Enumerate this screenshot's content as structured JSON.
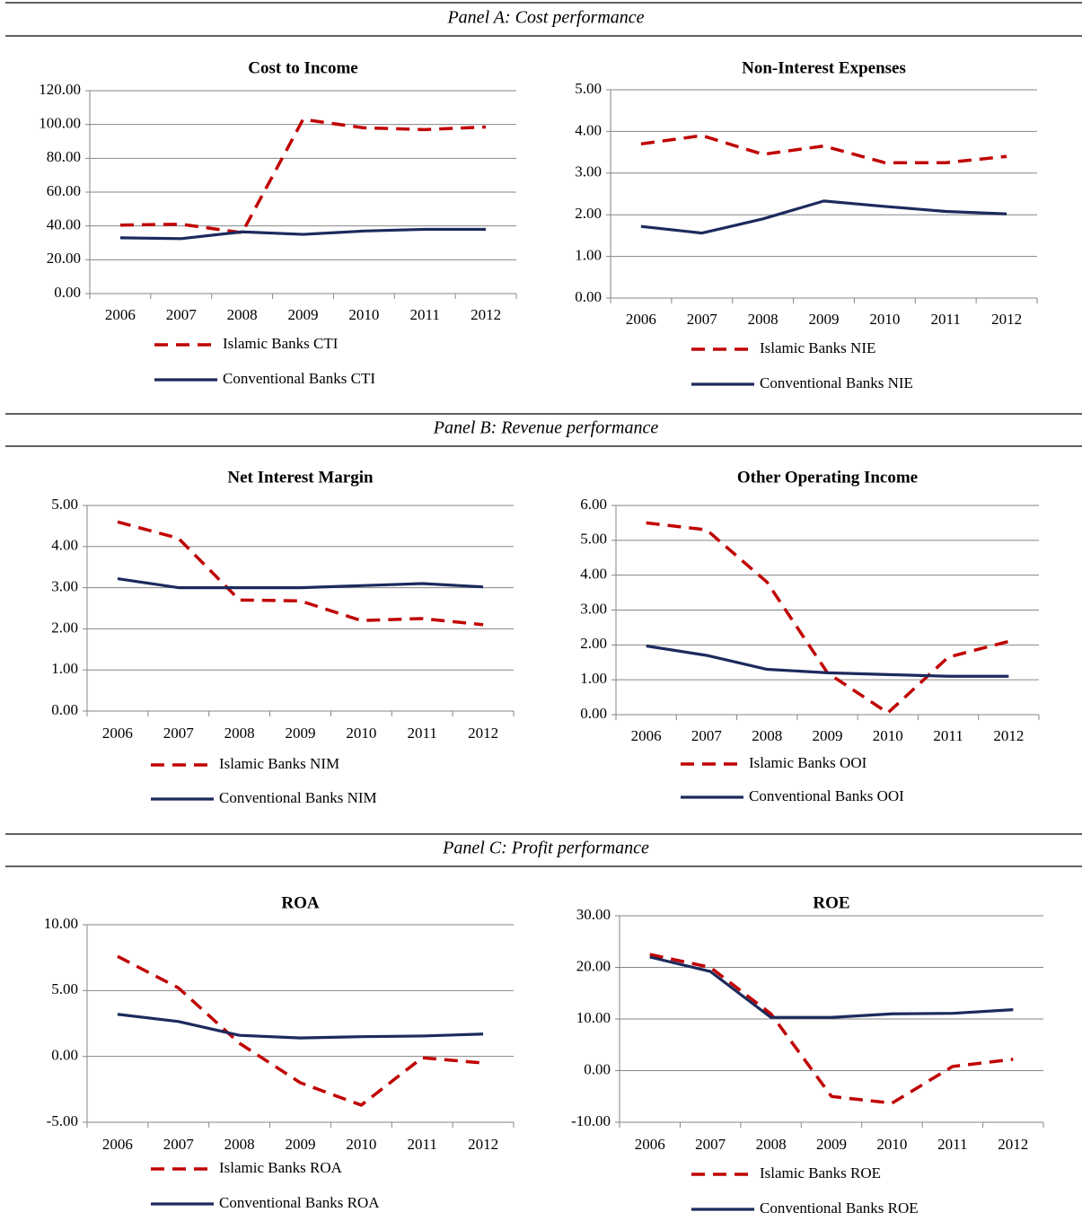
{
  "panels": [
    {
      "title": "Panel A: Cost performance"
    },
    {
      "title": "Panel B: Revenue performance"
    },
    {
      "title": "Panel C: Profit performance"
    }
  ],
  "chart_data": [
    {
      "type": "line",
      "title": "Cost to Income",
      "categories": [
        "2006",
        "2007",
        "2008",
        "2009",
        "2010",
        "2011",
        "2012"
      ],
      "series": [
        {
          "name": "Islamic Banks CTI",
          "color": "#c00000",
          "dashed": true,
          "values": [
            40.5,
            41,
            36,
            103,
            98,
            97,
            98.5
          ]
        },
        {
          "name": "Conventional Banks CTI",
          "color": "#1c2a5c",
          "dashed": false,
          "values": [
            33,
            32.5,
            36.5,
            35,
            37,
            38,
            38
          ]
        }
      ],
      "ylim": [
        0,
        120
      ],
      "yticks": [
        {
          "value": 0,
          "label": "0.00"
        },
        {
          "value": 20,
          "label": "20.00"
        },
        {
          "value": 40,
          "label": "40.00"
        },
        {
          "value": 60,
          "label": "60.00"
        },
        {
          "value": 80,
          "label": "80.00"
        },
        {
          "value": 100,
          "label": "100.00"
        },
        {
          "value": 120,
          "label": "120.00"
        }
      ],
      "grid": true
    },
    {
      "type": "line",
      "title": "Non-Interest Expenses",
      "categories": [
        "2006",
        "2007",
        "2008",
        "2009",
        "2010",
        "2011",
        "2012"
      ],
      "series": [
        {
          "name": "Islamic Banks NIE",
          "color": "#c00000",
          "dashed": true,
          "values": [
            3.7,
            3.9,
            3.45,
            3.65,
            3.25,
            3.25,
            3.4
          ]
        },
        {
          "name": "Conventional Banks NIE",
          "color": "#1c2a5c",
          "dashed": false,
          "values": [
            1.72,
            1.56,
            1.9,
            2.33,
            2.2,
            2.08,
            2.02
          ]
        }
      ],
      "ylim": [
        0,
        5
      ],
      "yticks": [
        {
          "value": 0,
          "label": "0.00"
        },
        {
          "value": 1,
          "label": "1.00"
        },
        {
          "value": 2,
          "label": "2.00"
        },
        {
          "value": 3,
          "label": "3.00"
        },
        {
          "value": 4,
          "label": "4.00"
        },
        {
          "value": 5,
          "label": "5.00"
        }
      ],
      "grid": true
    },
    {
      "type": "line",
      "title": "Net Interest Margin",
      "categories": [
        "2006",
        "2007",
        "2008",
        "2009",
        "2010",
        "2011",
        "2012"
      ],
      "series": [
        {
          "name": "Islamic Banks NIM",
          "color": "#c00000",
          "dashed": true,
          "values": [
            4.6,
            4.2,
            2.7,
            2.68,
            2.2,
            2.25,
            2.1
          ]
        },
        {
          "name": "Conventional Banks NIM",
          "color": "#1c2a5c",
          "dashed": false,
          "values": [
            3.22,
            3.0,
            3.0,
            3.0,
            3.05,
            3.1,
            3.02
          ]
        }
      ],
      "ylim": [
        0,
        5
      ],
      "yticks": [
        {
          "value": 0,
          "label": "0.00"
        },
        {
          "value": 1,
          "label": "1.00"
        },
        {
          "value": 2,
          "label": "2.00"
        },
        {
          "value": 3,
          "label": "3.00"
        },
        {
          "value": 4,
          "label": "4.00"
        },
        {
          "value": 5,
          "label": "5.00"
        }
      ],
      "grid": true
    },
    {
      "type": "line",
      "title": "Other Operating Income",
      "categories": [
        "2006",
        "2007",
        "2008",
        "2009",
        "2010",
        "2011",
        "2012"
      ],
      "series": [
        {
          "name": "Islamic Banks OOI",
          "color": "#c00000",
          "dashed": true,
          "values": [
            5.5,
            5.3,
            3.8,
            1.2,
            0.05,
            1.65,
            2.1
          ]
        },
        {
          "name": "Conventional Banks OOI",
          "color": "#1c2a5c",
          "dashed": false,
          "values": [
            1.97,
            1.7,
            1.3,
            1.2,
            1.15,
            1.1,
            1.1
          ]
        }
      ],
      "ylim": [
        0,
        6
      ],
      "yticks": [
        {
          "value": 0,
          "label": "0.00"
        },
        {
          "value": 1,
          "label": "1.00"
        },
        {
          "value": 2,
          "label": "2.00"
        },
        {
          "value": 3,
          "label": "3.00"
        },
        {
          "value": 4,
          "label": "4.00"
        },
        {
          "value": 5,
          "label": "5.00"
        },
        {
          "value": 6,
          "label": "6.00"
        }
      ],
      "grid": true
    },
    {
      "type": "line",
      "title": "ROA",
      "categories": [
        "2006",
        "2007",
        "2008",
        "2009",
        "2010",
        "2011",
        "2012"
      ],
      "series": [
        {
          "name": "Islamic Banks ROA",
          "color": "#c00000",
          "dashed": true,
          "values": [
            7.6,
            5.2,
            1.0,
            -2.0,
            -3.7,
            -0.1,
            -0.5
          ]
        },
        {
          "name": "Conventional Banks ROA",
          "color": "#1c2a5c",
          "dashed": false,
          "values": [
            3.2,
            2.65,
            1.6,
            1.4,
            1.5,
            1.55,
            1.7
          ]
        }
      ],
      "ylim": [
        -5,
        10
      ],
      "yticks": [
        {
          "value": -5,
          "label": "-5.00"
        },
        {
          "value": 0,
          "label": "0.00"
        },
        {
          "value": 5,
          "label": "5.00"
        },
        {
          "value": 10,
          "label": "10.00"
        }
      ],
      "grid": true
    },
    {
      "type": "line",
      "title": "ROE",
      "categories": [
        "2006",
        "2007",
        "2008",
        "2009",
        "2010",
        "2011",
        "2012"
      ],
      "series": [
        {
          "name": "Islamic Banks ROE",
          "color": "#c00000",
          "dashed": true,
          "values": [
            22.5,
            20.0,
            11.0,
            -5.0,
            -6.3,
            0.8,
            2.2
          ]
        },
        {
          "name": "Conventional Banks ROE",
          "color": "#1c2a5c",
          "dashed": false,
          "values": [
            22,
            19.2,
            10.3,
            10.3,
            11.0,
            11.1,
            11.8
          ]
        }
      ],
      "ylim": [
        -10,
        30
      ],
      "yticks": [
        {
          "value": -10,
          "label": "-10.00"
        },
        {
          "value": 0,
          "label": "0.00"
        },
        {
          "value": 10,
          "label": "10.00"
        },
        {
          "value": 20,
          "label": "20.00"
        },
        {
          "value": 30,
          "label": "30.00"
        }
      ],
      "grid": true
    }
  ]
}
